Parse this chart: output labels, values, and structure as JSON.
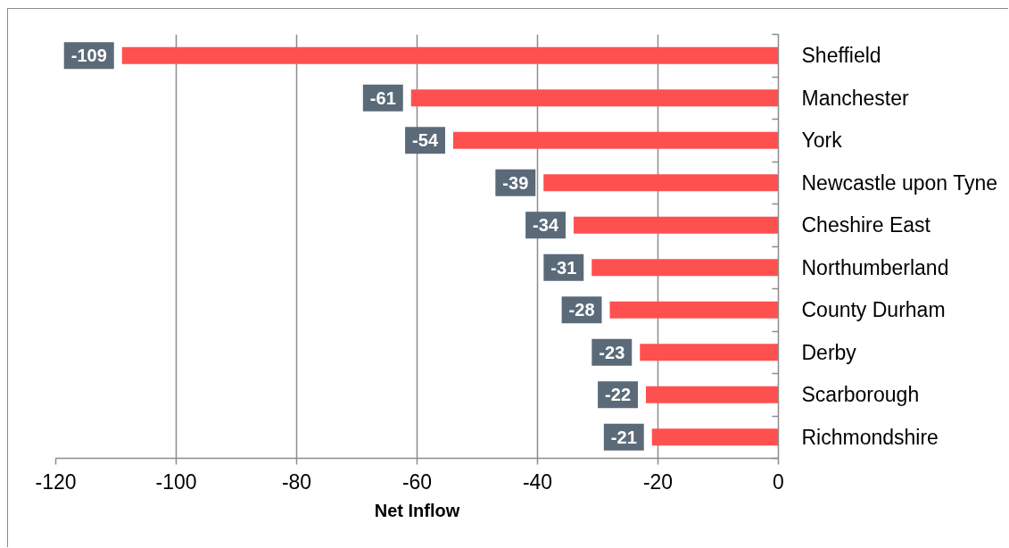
{
  "chart_data": {
    "type": "bar",
    "orientation": "horizontal",
    "categories": [
      "Sheffield",
      "Manchester",
      "York",
      "Newcastle upon Tyne",
      "Cheshire East",
      "Northumberland",
      "County Durham",
      "Derby",
      "Scarborough",
      "Richmondshire"
    ],
    "values": [
      -109,
      -61,
      -54,
      -39,
      -34,
      -31,
      -28,
      -23,
      -22,
      -21
    ],
    "color": "#ff5050",
    "xlabel": "Net Inflow",
    "xlim": [
      -120,
      0
    ],
    "xticks": [
      -120,
      -100,
      -80,
      -60,
      -40,
      -20,
      0
    ],
    "grid": "x",
    "data_labels": true
  }
}
